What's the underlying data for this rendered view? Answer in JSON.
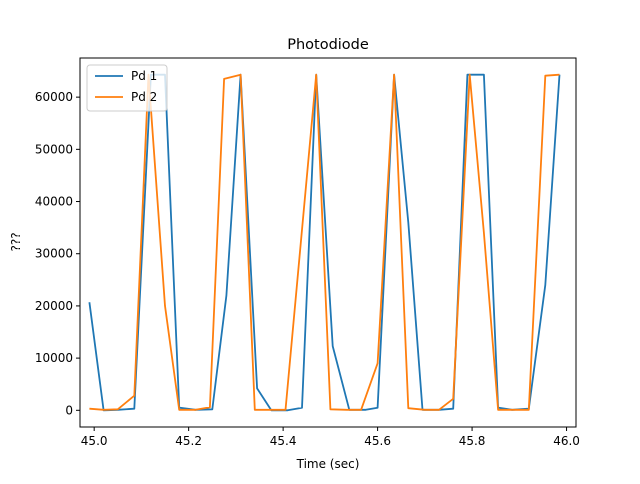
{
  "chart_data": {
    "type": "line",
    "title": "Photodiode",
    "xlabel": "Time (sec)",
    "ylabel": "???",
    "xlim": [
      44.97,
      46.02
    ],
    "ylim": [
      -3200,
      67500
    ],
    "xticks": [
      45.0,
      45.2,
      45.4,
      45.6,
      45.8,
      46.0
    ],
    "xtick_labels": [
      "45.0",
      "45.2",
      "45.4",
      "45.6",
      "45.8",
      "46.0"
    ],
    "yticks": [
      0,
      10000,
      20000,
      30000,
      40000,
      50000,
      60000
    ],
    "ytick_labels": [
      "0",
      "10000",
      "20000",
      "30000",
      "40000",
      "50000",
      "60000"
    ],
    "grid": false,
    "legend_position": "top-left",
    "series": [
      {
        "name": "Pd 1",
        "color": "#1f77b4",
        "x": [
          44.99,
          45.02,
          45.05,
          45.085,
          45.12,
          45.15,
          45.18,
          45.215,
          45.25,
          45.28,
          45.31,
          45.345,
          45.375,
          45.41,
          45.44,
          45.47,
          45.505,
          45.54,
          45.575,
          45.6,
          45.635,
          45.665,
          45.695,
          45.73,
          45.76,
          45.79,
          45.825,
          45.855,
          45.885,
          45.92,
          45.955,
          45.985
        ],
        "y": [
          20700,
          0,
          100,
          300,
          64300,
          64300,
          500,
          100,
          200,
          22000,
          64300,
          4200,
          0,
          0,
          500,
          64300,
          12300,
          100,
          100,
          500,
          64300,
          36000,
          100,
          100,
          300,
          64300,
          64300,
          500,
          100,
          300,
          24000,
          64300
        ]
      },
      {
        "name": "Pd 2",
        "color": "#ff7f0e",
        "x": [
          44.99,
          45.02,
          45.05,
          45.085,
          45.115,
          45.15,
          45.18,
          45.215,
          45.245,
          45.275,
          45.31,
          45.34,
          45.37,
          45.405,
          45.47,
          45.5,
          45.535,
          45.565,
          45.6,
          45.635,
          45.665,
          45.7,
          45.73,
          45.76,
          45.795,
          45.825,
          45.855,
          45.89,
          45.92,
          45.955,
          45.985
        ],
        "y": [
          300,
          100,
          200,
          2800,
          64300,
          20000,
          100,
          100,
          600,
          63500,
          64300,
          100,
          100,
          100,
          64300,
          200,
          100,
          100,
          9000,
          64300,
          400,
          100,
          100,
          2200,
          64300,
          34000,
          100,
          100,
          100,
          64100,
          64300
        ]
      }
    ]
  }
}
